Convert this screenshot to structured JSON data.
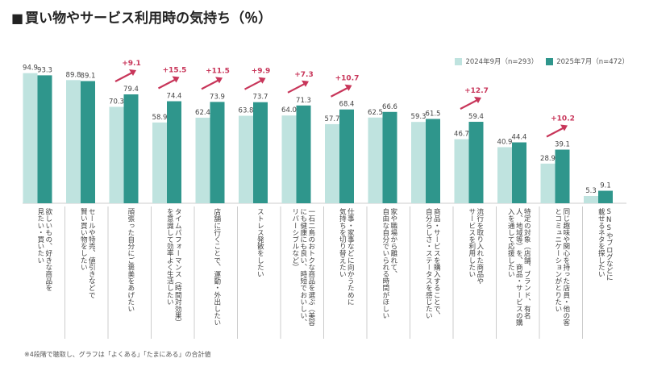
{
  "title": "買い物やサービス利用時の気持ち（％）",
  "footnote": "※4段階で聴取し、グラフは「よくある」「たまにある」の合計値",
  "colors": {
    "series_2024": "#bfe3df",
    "series_2025": "#2f968c",
    "arrow": "#c8365a",
    "divider": "#aaaaaa"
  },
  "chart_data": {
    "type": "bar",
    "series": [
      {
        "name": "2024年9月（n=293）",
        "values": [
          94.9,
          89.8,
          70.3,
          58.9,
          62.4,
          63.8,
          64.0,
          57.7,
          62.5,
          59.3,
          46.7,
          40.9,
          28.9,
          5.3
        ]
      },
      {
        "name": "2025年7月（n=472）",
        "values": [
          93.3,
          89.1,
          79.4,
          74.4,
          73.9,
          73.7,
          71.3,
          68.4,
          66.6,
          61.5,
          59.4,
          44.4,
          39.1,
          9.1
        ]
      }
    ],
    "categories": [
      "欲しいもの、好きな商品を\n見たい・買いたい",
      "セールや特売、値引きなどで\n賢い買い物をしたい",
      "頑張った自分にご褒美をあげたい",
      "タイムパフォーマンス（時間対効果）\nを意識して効率よく生活したい",
      "店舗に行くことで、運動・外出したい",
      "ストレス発散をしたい",
      "一石二鳥のおトクな商品を選ぶ（美容\nにも健康にも良い、時短でおいしい、\nリバーシブルなど）",
      "仕事・家事などに向かうために\n気持ちを切り替えたい",
      "家や職場から離れて、\n自由な自分でいられる時間がほしい",
      "商品・サービスを購入することで、\n自分らしさ・ステータスを感じたい",
      "流行を取り入れた商品や\nサービスを利用したい",
      "特定の対象（店舗、ブランド、有名\n人、地域等）を、商品・サービスの購\n入を通して応援したい",
      "同じ趣味や関心を持った店員・他の客\nとコミュニケーションがとりたい",
      "SNSやブログなどに\n載せるネタを探したい"
    ],
    "increases": [
      {
        "index": 2,
        "label": "+9.1"
      },
      {
        "index": 3,
        "label": "+15.5"
      },
      {
        "index": 4,
        "label": "+11.5"
      },
      {
        "index": 5,
        "label": "+9.9"
      },
      {
        "index": 6,
        "label": "+7.3"
      },
      {
        "index": 7,
        "label": "+10.7"
      },
      {
        "index": 10,
        "label": "+12.7"
      },
      {
        "index": 12,
        "label": "+10.2"
      }
    ],
    "ylim": [
      0,
      100
    ],
    "grid": false,
    "legend_position": "top-right"
  }
}
